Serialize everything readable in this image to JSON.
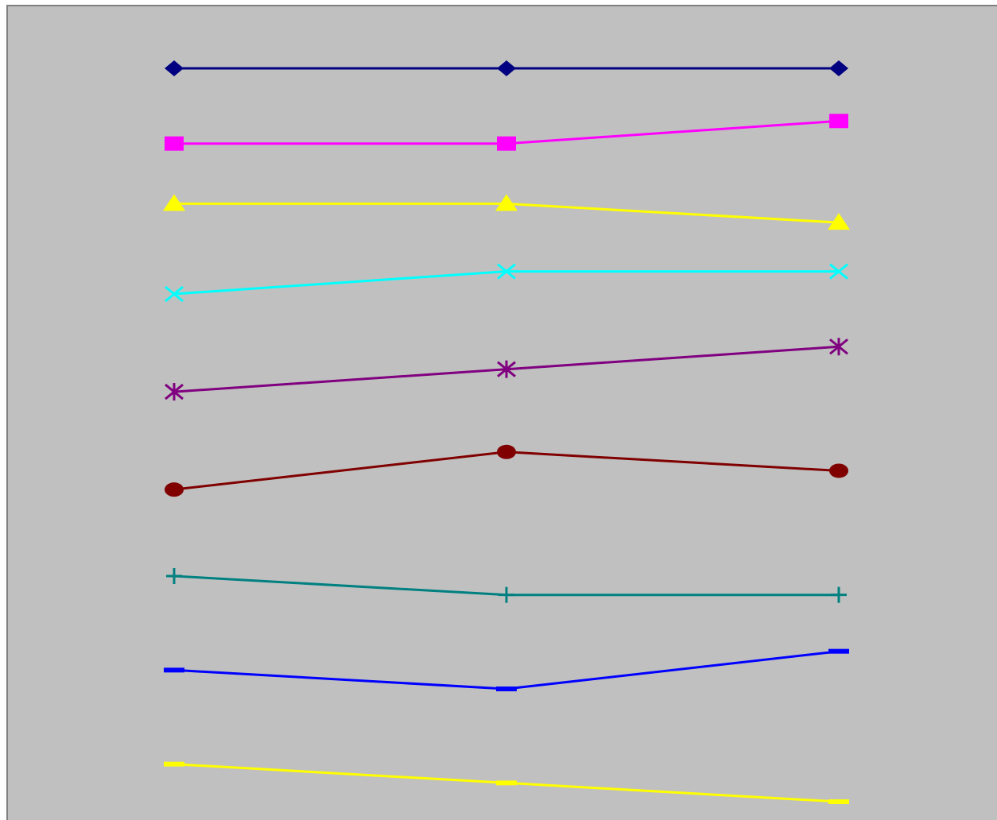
{
  "chart_data": {
    "type": "line",
    "title": "",
    "xlabel": "",
    "ylabel": "",
    "grid": false,
    "legend": "none",
    "x": [
      1,
      2,
      3
    ],
    "xlim": [
      0.5,
      3.5
    ],
    "ylim": [
      0,
      11.5
    ],
    "plot_background": "#c0c0c0",
    "frame_color": "#808080",
    "series": [
      {
        "values": [
          10.6,
          10.6,
          10.6
        ],
        "color": "#000080",
        "marker": "diamond"
      },
      {
        "values": [
          9.6,
          9.6,
          9.9
        ],
        "color": "#ff00ff",
        "marker": "square"
      },
      {
        "values": [
          8.8,
          8.8,
          8.55
        ],
        "color": "#ffff00",
        "marker": "triangle"
      },
      {
        "values": [
          7.6,
          7.9,
          7.9
        ],
        "color": "#00ffff",
        "marker": "x"
      },
      {
        "values": [
          6.3,
          6.6,
          6.9
        ],
        "color": "#800080",
        "marker": "star"
      },
      {
        "values": [
          5.0,
          5.5,
          5.25
        ],
        "color": "#800000",
        "marker": "circle"
      },
      {
        "values": [
          3.85,
          3.6,
          3.6
        ],
        "color": "#008080",
        "marker": "plus"
      },
      {
        "values": [
          2.6,
          2.35,
          2.85
        ],
        "color": "#0000ff",
        "marker": "dash"
      },
      {
        "values": [
          1.35,
          1.1,
          0.85
        ],
        "color": "#ffff00",
        "marker": "dash"
      }
    ]
  }
}
